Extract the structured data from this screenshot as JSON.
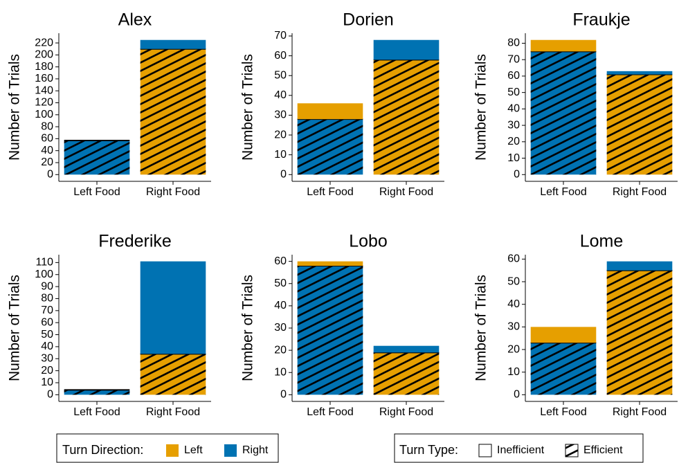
{
  "chart_data": [
    {
      "type": "bar",
      "title": "Alex",
      "ylabel": "Number of Trials",
      "categories": [
        "Left Food",
        "Right Food"
      ],
      "series": [
        {
          "name": "Left",
          "color": "#E69F00",
          "values": [
            0,
            210
          ]
        },
        {
          "name": "Right",
          "color": "#0072B2",
          "values": [
            57,
            15
          ]
        }
      ],
      "efficient_series": [
        1,
        0
      ],
      "ylim": [
        -11.25,
        236.25
      ],
      "yticks": [
        0,
        20,
        40,
        60,
        80,
        100,
        120,
        140,
        160,
        180,
        200,
        220
      ]
    },
    {
      "type": "bar",
      "title": "Dorien",
      "ylabel": "Number of Trials",
      "categories": [
        "Left Food",
        "Right Food"
      ],
      "series": [
        {
          "name": "Left",
          "color": "#E69F00",
          "values": [
            8,
            58
          ]
        },
        {
          "name": "Right",
          "color": "#0072B2",
          "values": [
            28,
            10
          ]
        }
      ],
      "efficient_series": [
        1,
        0
      ],
      "ylim": [
        -3.4,
        71.4
      ],
      "yticks": [
        0,
        10,
        20,
        30,
        40,
        50,
        60,
        70
      ]
    },
    {
      "type": "bar",
      "title": "Fraukje",
      "ylabel": "Number of Trials",
      "categories": [
        "Left Food",
        "Right Food"
      ],
      "series": [
        {
          "name": "Left",
          "color": "#E69F00",
          "values": [
            7,
            61
          ]
        },
        {
          "name": "Right",
          "color": "#0072B2",
          "values": [
            75,
            2
          ]
        }
      ],
      "efficient_series": [
        1,
        0
      ],
      "ylim": [
        -4.1,
        86.1
      ],
      "yticks": [
        0,
        10,
        20,
        30,
        40,
        50,
        60,
        70,
        80
      ]
    },
    {
      "type": "bar",
      "title": "Frederike",
      "ylabel": "Number of Trials",
      "categories": [
        "Left Food",
        "Right Food"
      ],
      "series": [
        {
          "name": "Left",
          "color": "#E69F00",
          "values": [
            0,
            34
          ]
        },
        {
          "name": "Right",
          "color": "#0072B2",
          "values": [
            4,
            77
          ]
        }
      ],
      "efficient_series": [
        1,
        0
      ],
      "ylim": [
        -5.55,
        116.55
      ],
      "yticks": [
        0,
        10,
        20,
        30,
        40,
        50,
        60,
        70,
        80,
        90,
        100,
        110
      ]
    },
    {
      "type": "bar",
      "title": "Lobo",
      "ylabel": "Number of Trials",
      "categories": [
        "Left Food",
        "Right Food"
      ],
      "series": [
        {
          "name": "Left",
          "color": "#E69F00",
          "values": [
            2,
            19
          ]
        },
        {
          "name": "Right",
          "color": "#0072B2",
          "values": [
            58,
            3
          ]
        }
      ],
      "efficient_series": [
        1,
        0
      ],
      "ylim": [
        -3,
        63
      ],
      "yticks": [
        0,
        10,
        20,
        30,
        40,
        50,
        60
      ]
    },
    {
      "type": "bar",
      "title": "Lome",
      "ylabel": "Number of Trials",
      "categories": [
        "Left Food",
        "Right Food"
      ],
      "series": [
        {
          "name": "Left",
          "color": "#E69F00",
          "values": [
            7,
            55
          ]
        },
        {
          "name": "Right",
          "color": "#0072B2",
          "values": [
            23,
            4
          ]
        }
      ],
      "efficient_series": [
        1,
        0
      ],
      "ylim": [
        -2.95,
        61.95
      ],
      "yticks": [
        0,
        10,
        20,
        30,
        40,
        50,
        60
      ]
    }
  ],
  "legend": {
    "direction_title": "Turn Direction:",
    "type_title": "Turn Type:",
    "type_items": [
      "Inefficient",
      "Efficient"
    ]
  }
}
